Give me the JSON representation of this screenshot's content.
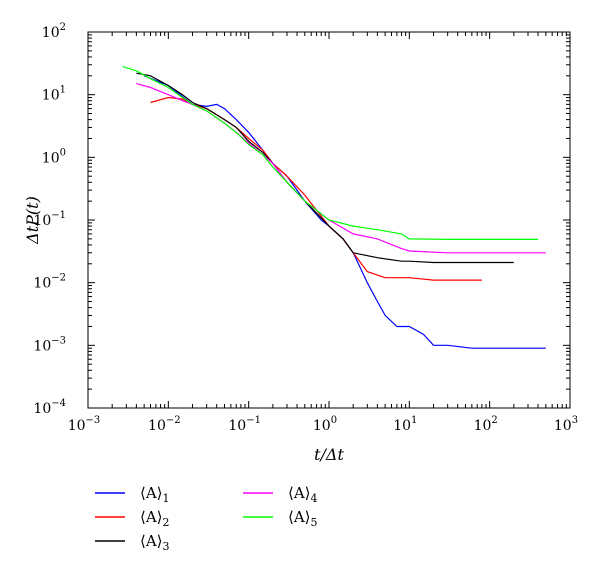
{
  "chart_data": {
    "type": "line",
    "title": "",
    "xlabel": "t/Δt",
    "ylabel": "ΔtP(t)",
    "x_scale": "log",
    "y_scale": "log",
    "xlim": [
      0.001,
      1000
    ],
    "ylim": [
      0.0001,
      100
    ],
    "x_ticks": [
      {
        "base": "10",
        "exp": "−3"
      },
      {
        "base": "10",
        "exp": "−2"
      },
      {
        "base": "10",
        "exp": "−1"
      },
      {
        "base": "10",
        "exp": "0"
      },
      {
        "base": "10",
        "exp": "1"
      },
      {
        "base": "10",
        "exp": "2"
      },
      {
        "base": "10",
        "exp": "3"
      }
    ],
    "y_ticks": [
      {
        "base": "10",
        "exp": "−4"
      },
      {
        "base": "10",
        "exp": "−3"
      },
      {
        "base": "10",
        "exp": "−2"
      },
      {
        "base": "10",
        "exp": "−1"
      },
      {
        "base": "10",
        "exp": "0"
      },
      {
        "base": "10",
        "exp": "1"
      },
      {
        "base": "10",
        "exp": "2"
      }
    ],
    "grid": false,
    "legend_position": "bottom",
    "series": [
      {
        "name": "⟨A⟩",
        "subscript": "1",
        "color": "#0000ff",
        "points": [
          [
            0.005,
            20
          ],
          [
            0.01,
            14
          ],
          [
            0.02,
            7
          ],
          [
            0.03,
            6.5
          ],
          [
            0.04,
            7
          ],
          [
            0.05,
            6
          ],
          [
            0.07,
            4
          ],
          [
            0.1,
            2.5
          ],
          [
            0.15,
            1.3
          ],
          [
            0.2,
            0.8
          ],
          [
            0.3,
            0.5
          ],
          [
            0.5,
            0.2
          ],
          [
            0.8,
            0.1
          ],
          [
            1,
            0.08
          ],
          [
            1.5,
            0.05
          ],
          [
            2,
            0.03
          ],
          [
            3,
            0.01
          ],
          [
            4,
            0.005
          ],
          [
            5,
            0.003
          ],
          [
            7,
            0.002
          ],
          [
            10,
            0.002
          ],
          [
            15,
            0.0015
          ],
          [
            20,
            0.001
          ],
          [
            30,
            0.001
          ],
          [
            60,
            0.0009
          ],
          [
            500,
            0.0009
          ]
        ]
      },
      {
        "name": "⟨A⟩",
        "subscript": "2",
        "color": "#ff0000",
        "points": [
          [
            0.006,
            7.5
          ],
          [
            0.01,
            9
          ],
          [
            0.015,
            8.5
          ],
          [
            0.02,
            7
          ],
          [
            0.03,
            6
          ],
          [
            0.05,
            4
          ],
          [
            0.07,
            3
          ],
          [
            0.1,
            2
          ],
          [
            0.15,
            1.3
          ],
          [
            0.2,
            0.8
          ],
          [
            0.3,
            0.5
          ],
          [
            0.5,
            0.25
          ],
          [
            1,
            0.08
          ],
          [
            1.5,
            0.05
          ],
          [
            2,
            0.03
          ],
          [
            3,
            0.015
          ],
          [
            5,
            0.012
          ],
          [
            8,
            0.012
          ],
          [
            10,
            0.012
          ],
          [
            20,
            0.011
          ],
          [
            80,
            0.011
          ]
        ]
      },
      {
        "name": "⟨A⟩",
        "subscript": "3",
        "color": "#000000",
        "points": [
          [
            0.004,
            22
          ],
          [
            0.006,
            20
          ],
          [
            0.01,
            14
          ],
          [
            0.015,
            10
          ],
          [
            0.02,
            7.5
          ],
          [
            0.03,
            6
          ],
          [
            0.05,
            4
          ],
          [
            0.07,
            3
          ],
          [
            0.1,
            1.8
          ],
          [
            0.15,
            1.2
          ],
          [
            0.2,
            0.8
          ],
          [
            0.3,
            0.4
          ],
          [
            0.5,
            0.2
          ],
          [
            1,
            0.08
          ],
          [
            1.5,
            0.05
          ],
          [
            2,
            0.03
          ],
          [
            4,
            0.025
          ],
          [
            8,
            0.022
          ],
          [
            10,
            0.022
          ],
          [
            20,
            0.021
          ],
          [
            200,
            0.021
          ]
        ]
      },
      {
        "name": "⟨A⟩",
        "subscript": "4",
        "color": "#ff00ff",
        "points": [
          [
            0.004,
            15
          ],
          [
            0.006,
            13
          ],
          [
            0.01,
            10
          ],
          [
            0.015,
            8
          ],
          [
            0.02,
            7
          ],
          [
            0.03,
            5.5
          ],
          [
            0.05,
            3.5
          ],
          [
            0.07,
            2.5
          ],
          [
            0.1,
            1.7
          ],
          [
            0.15,
            1.1
          ],
          [
            0.2,
            0.8
          ],
          [
            0.3,
            0.4
          ],
          [
            0.5,
            0.2
          ],
          [
            1,
            0.1
          ],
          [
            2,
            0.06
          ],
          [
            4,
            0.05
          ],
          [
            8,
            0.035
          ],
          [
            10,
            0.032
          ],
          [
            30,
            0.03
          ],
          [
            500,
            0.03
          ]
        ]
      },
      {
        "name": "⟨A⟩",
        "subscript": "5",
        "color": "#00ff00",
        "points": [
          [
            0.0027,
            28
          ],
          [
            0.004,
            24
          ],
          [
            0.006,
            18
          ],
          [
            0.01,
            13
          ],
          [
            0.015,
            9
          ],
          [
            0.02,
            7
          ],
          [
            0.03,
            5.5
          ],
          [
            0.05,
            3.5
          ],
          [
            0.07,
            2.5
          ],
          [
            0.1,
            1.6
          ],
          [
            0.15,
            1.1
          ],
          [
            0.2,
            0.7
          ],
          [
            0.3,
            0.4
          ],
          [
            0.5,
            0.2
          ],
          [
            1,
            0.1
          ],
          [
            2,
            0.08
          ],
          [
            4,
            0.07
          ],
          [
            8,
            0.06
          ],
          [
            10,
            0.05
          ],
          [
            30,
            0.049
          ],
          [
            400,
            0.049
          ]
        ]
      }
    ]
  }
}
